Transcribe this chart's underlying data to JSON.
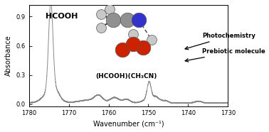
{
  "xlabel": "Wavenumber (cm⁻¹)",
  "ylabel": "Absorbance",
  "xlim": [
    1780,
    1730
  ],
  "ylim": [
    -0.02,
    1.02
  ],
  "yticks": [
    0.0,
    0.3,
    0.6,
    0.9
  ],
  "xticks": [
    1780,
    1770,
    1760,
    1750,
    1740,
    1730
  ],
  "bg_color": "#ffffff",
  "line_color": "#888888",
  "text_color": "#000000",
  "hcooh_label": "HCOOH",
  "complex_label": "(HCOOH)(CH₃CN)",
  "photo_label": "Photochemistry",
  "prebio_label": "Prebiotic molecule",
  "atom_colors": {
    "C": "#909090",
    "H": "#c8c8c8",
    "N": "#3333cc",
    "O": "#cc2200"
  }
}
